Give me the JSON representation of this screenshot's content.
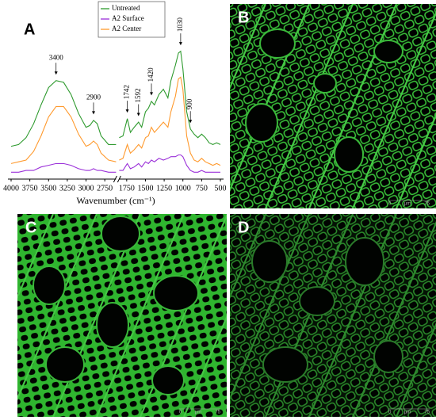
{
  "chart_data": {
    "type": "line",
    "panel_label": "A",
    "xlabel": "Wavenumber (cm⁻¹)",
    "xlim": [
      4000,
      500
    ],
    "x_break": [
      2600,
      1850
    ],
    "ylim": [
      0,
      100
    ],
    "xticks": [
      4000,
      3750,
      3500,
      3250,
      3000,
      2750,
      1750,
      1500,
      1250,
      1000,
      750,
      500
    ],
    "legend": "upper center",
    "x": [
      4000,
      3900,
      3800,
      3700,
      3600,
      3500,
      3400,
      3300,
      3200,
      3100,
      3000,
      2950,
      2900,
      2850,
      2800,
      2700,
      2600,
      2200,
      1850,
      1800,
      1742,
      1700,
      1650,
      1592,
      1550,
      1500,
      1460,
      1420,
      1380,
      1320,
      1260,
      1200,
      1160,
      1100,
      1060,
      1030,
      1000,
      950,
      900,
      850,
      800,
      750,
      700,
      650,
      600,
      550,
      500
    ],
    "series": [
      {
        "name": "Untreated",
        "color": "#2e9a2e",
        "values": [
          19,
          20,
          24,
          32,
          43,
          53,
          57,
          56,
          49,
          38,
          30,
          31,
          34,
          32,
          25,
          20,
          20,
          null,
          24,
          25,
          35,
          27,
          30,
          33,
          30,
          39,
          41,
          45,
          43,
          49,
          52,
          47,
          57,
          66,
          73,
          74,
          64,
          39,
          29,
          26,
          24,
          26,
          24,
          21,
          20,
          21,
          20
        ]
      },
      {
        "name": "A2 Surface",
        "color": "#9b30d9",
        "values": [
          4,
          4,
          5,
          5,
          7,
          8,
          9,
          9,
          8,
          6,
          5,
          5,
          6,
          5,
          5,
          4,
          4,
          null,
          5,
          5,
          9,
          6,
          7,
          9,
          7,
          10,
          9,
          11,
          10,
          12,
          11,
          12,
          13,
          13,
          14,
          14,
          13,
          8,
          5,
          4,
          4,
          5,
          4,
          4,
          4,
          4,
          4
        ]
      },
      {
        "name": "A2 Center",
        "color": "#ff9a2e",
        "values": [
          9,
          10,
          11,
          16,
          25,
          36,
          42,
          42,
          36,
          26,
          19,
          20,
          22,
          20,
          15,
          11,
          10,
          null,
          11,
          12,
          20,
          15,
          17,
          20,
          18,
          24,
          25,
          30,
          27,
          30,
          33,
          30,
          39,
          48,
          58,
          59,
          52,
          25,
          15,
          11,
          10,
          12,
          10,
          9,
          8,
          9,
          8
        ]
      }
    ],
    "annotations": [
      {
        "x": 3400,
        "y": 60,
        "vertical": false
      },
      {
        "x": 2900,
        "y": 37,
        "vertical": false
      },
      {
        "x": 1742,
        "y": 38,
        "vertical": true
      },
      {
        "x": 1592,
        "y": 36,
        "vertical": true
      },
      {
        "x": 1420,
        "y": 48,
        "vertical": true
      },
      {
        "x": 1030,
        "y": 77,
        "vertical": true
      },
      {
        "x": 900,
        "y": 32,
        "vertical": true
      }
    ]
  },
  "panels": [
    {
      "label": "B",
      "scale": {
        "start": "0",
        "unit": "µm",
        "end": "75"
      }
    },
    {
      "label": "C",
      "scale": {
        "start": "0",
        "unit": "µm",
        "end": "75"
      }
    },
    {
      "label": "D",
      "scale": {
        "start": "0",
        "unit": "µm",
        "end": "75"
      }
    }
  ]
}
